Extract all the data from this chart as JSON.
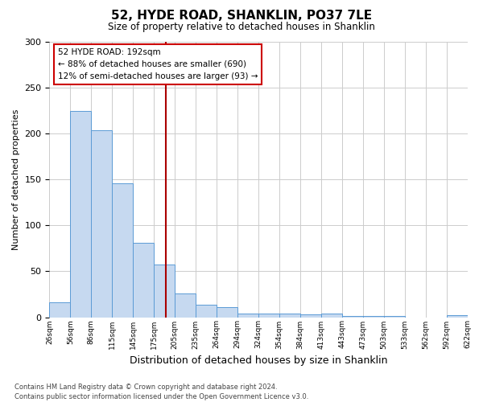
{
  "title": "52, HYDE ROAD, SHANKLIN, PO37 7LE",
  "subtitle": "Size of property relative to detached houses in Shanklin",
  "xlabel": "Distribution of detached houses by size in Shanklin",
  "ylabel": "Number of detached properties",
  "bin_labels": [
    "26sqm",
    "56sqm",
    "86sqm",
    "115sqm",
    "145sqm",
    "175sqm",
    "205sqm",
    "235sqm",
    "264sqm",
    "294sqm",
    "324sqm",
    "354sqm",
    "384sqm",
    "413sqm",
    "443sqm",
    "473sqm",
    "503sqm",
    "533sqm",
    "562sqm",
    "592sqm",
    "622sqm"
  ],
  "bar_values": [
    16,
    224,
    203,
    146,
    81,
    57,
    26,
    14,
    11,
    4,
    4,
    4,
    3,
    4,
    1,
    1,
    1,
    0,
    0,
    2
  ],
  "bar_color": "#c6d9f0",
  "bar_edge_color": "#5b9bd5",
  "vline_color": "#aa0000",
  "annotation_line1": "52 HYDE ROAD: 192sqm",
  "annotation_line2": "← 88% of detached houses are smaller (690)",
  "annotation_line3": "12% of semi-detached houses are larger (93) →",
  "annotation_box_color": "#ffffff",
  "annotation_box_edge_color": "#cc0000",
  "ylim": [
    0,
    300
  ],
  "yticks": [
    0,
    50,
    100,
    150,
    200,
    250,
    300
  ],
  "footer_line1": "Contains HM Land Registry data © Crown copyright and database right 2024.",
  "footer_line2": "Contains public sector information licensed under the Open Government Licence v3.0.",
  "bg_color": "#ffffff",
  "grid_color": "#cccccc"
}
